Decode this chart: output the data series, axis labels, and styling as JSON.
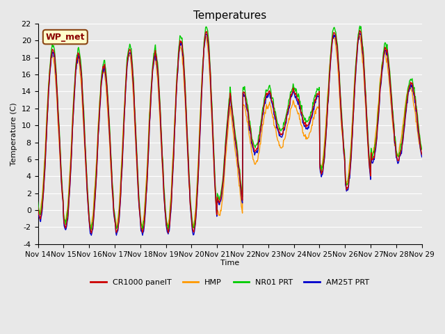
{
  "title": "Temperatures",
  "ylabel": "Temperature (C)",
  "xlabel": "Time",
  "ylim": [
    -4,
    22
  ],
  "annotation": "WP_met",
  "bg_color": "#e8e8e8",
  "series_colors": {
    "CR1000 panelT": "#cc0000",
    "HMP": "#ff9900",
    "NR01 PRT": "#00cc00",
    "AM25T PRT": "#0000cc"
  },
  "xtick_labels": [
    "Nov 14",
    "Nov 15",
    "Nov 16",
    "Nov 17",
    "Nov 18",
    "Nov 19",
    "Nov 20",
    "Nov 21",
    "Nov 22",
    "Nov 23",
    "Nov 24",
    "Nov 25",
    "Nov 26",
    "Nov 27",
    "Nov 28",
    "Nov 29"
  ],
  "ytick_values": [
    -4,
    -2,
    0,
    2,
    4,
    6,
    8,
    10,
    12,
    14,
    16,
    18,
    20,
    22
  ]
}
